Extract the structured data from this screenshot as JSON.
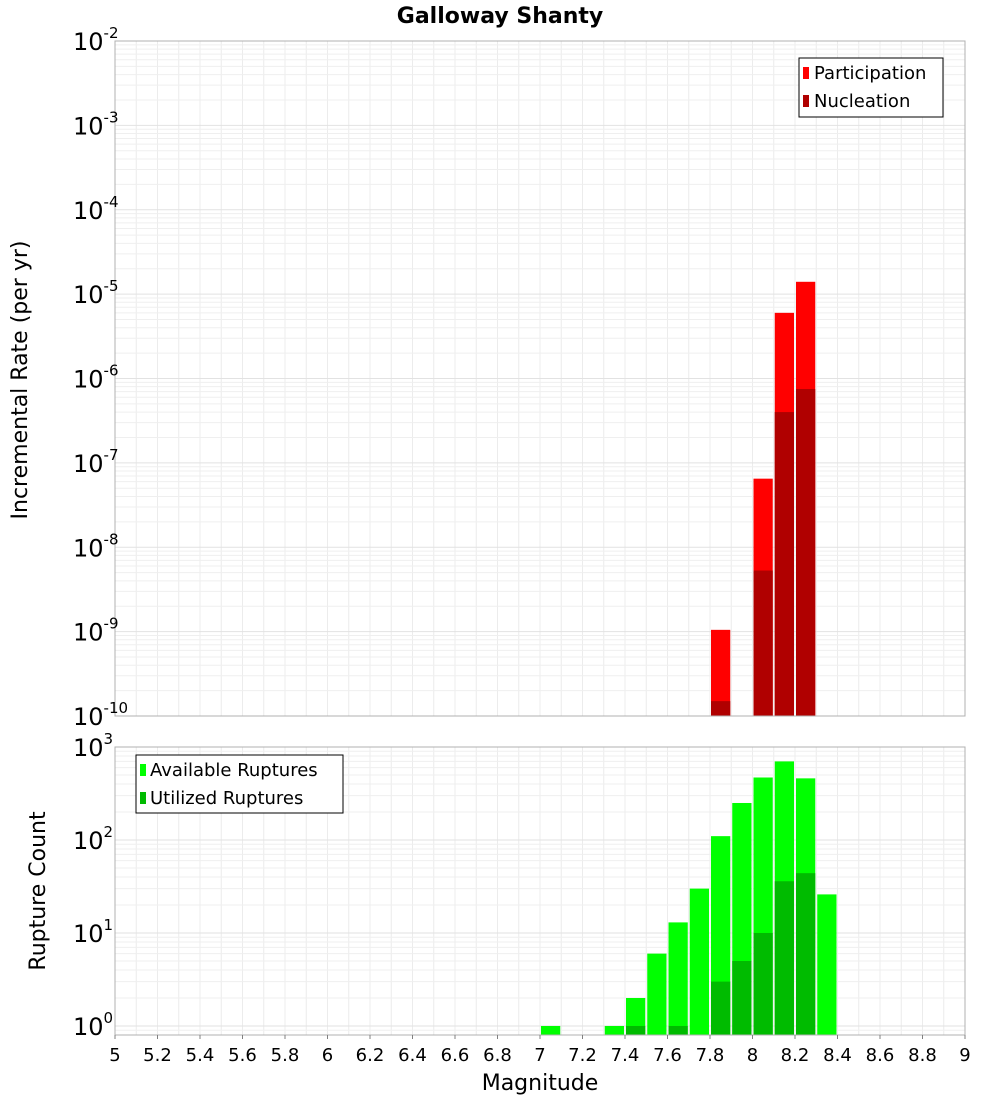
{
  "chart_data": {
    "title": "Galloway Shanty",
    "xlabel": "Magnitude",
    "xlim": [
      5,
      9
    ],
    "x_ticks": [
      "5",
      "5.2",
      "5.4",
      "5.6",
      "5.8",
      "6",
      "6.2",
      "6.4",
      "6.6",
      "6.8",
      "7",
      "7.2",
      "7.4",
      "7.6",
      "7.8",
      "8",
      "8.2",
      "8.4",
      "8.6",
      "8.8",
      "9"
    ],
    "bin_width": 0.1,
    "grid": true,
    "panels": [
      {
        "type": "bar",
        "ylabel": "Incremental Rate (per yr)",
        "y_scale": "log",
        "ylim": [
          1e-10,
          0.01
        ],
        "y_tick_exponents": [
          "-10",
          "-9",
          "-8",
          "-7",
          "-6",
          "-5",
          "-4",
          "-3",
          "-2"
        ],
        "legend_position": "top-right",
        "overlay": true,
        "series": [
          {
            "name": "Participation",
            "color": "#ff0000",
            "x": [
              7.85,
              8.05,
              8.15,
              8.25
            ],
            "values": [
              1.05e-09,
              6.5e-08,
              6e-06,
              1.4e-05
            ]
          },
          {
            "name": "Nucleation",
            "color": "#b00000",
            "x": [
              7.85,
              8.05,
              8.15,
              8.25
            ],
            "values": [
              1.5e-10,
              5.3e-09,
              4e-07,
              7.5e-07
            ]
          }
        ]
      },
      {
        "type": "bar",
        "ylabel": "Rupture Count",
        "y_scale": "log",
        "ylim": [
          0.8,
          1000
        ],
        "y_tick_exponents": [
          "0",
          "1",
          "2",
          "3"
        ],
        "legend_position": "top-left",
        "overlay": true,
        "series": [
          {
            "name": "Available Ruptures",
            "color": "#00ff00",
            "x": [
              7.05,
              7.35,
              7.45,
              7.55,
              7.65,
              7.75,
              7.85,
              7.95,
              8.05,
              8.15,
              8.25,
              8.35
            ],
            "values": [
              1,
              1,
              2,
              6,
              13,
              30,
              110,
              250,
              470,
              700,
              460,
              26
            ]
          },
          {
            "name": "Utilized Ruptures",
            "color": "#00bb00",
            "x": [
              7.45,
              7.65,
              7.85,
              7.95,
              8.05,
              8.15,
              8.25
            ],
            "values": [
              1,
              1,
              3,
              5,
              10,
              36,
              44
            ]
          }
        ]
      }
    ]
  }
}
